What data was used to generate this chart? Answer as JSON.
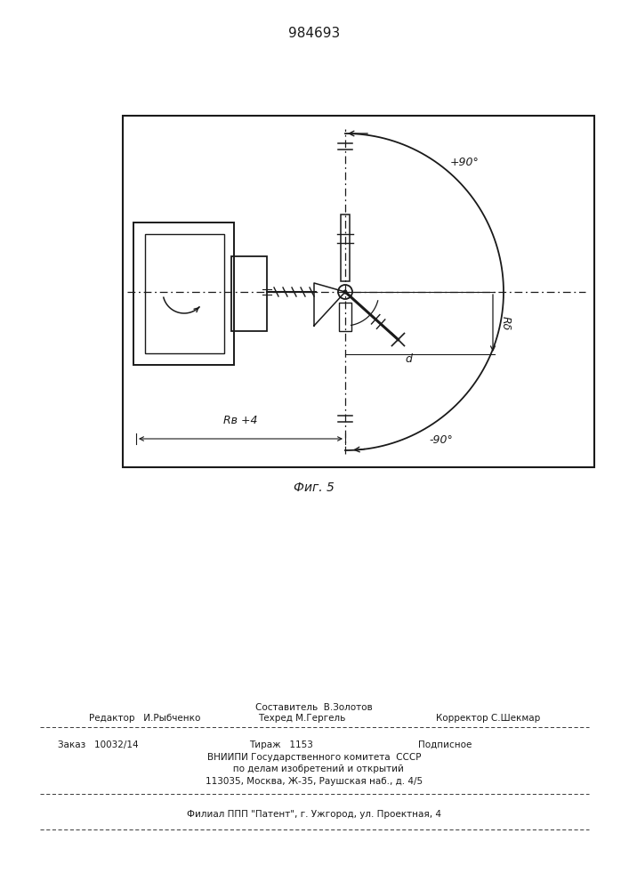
{
  "title": "984693",
  "fig_label": "Фиг. 5",
  "bg_color": "#ffffff",
  "line_color": "#1a1a1a",
  "page_width": 7.07,
  "page_height": 10.0,
  "label_90p": "+90°",
  "label_90n": "-90°",
  "label_Rb": "Rδ",
  "label_d": "d",
  "label_Rv4": "Rв +4",
  "footer_compose": "Составитель  В.Золотов",
  "footer_editor": "Редактор   И.Рыбченко",
  "footer_techred": "Техред М.Гергель",
  "footer_correct": "Корректор С.Шекмар",
  "footer_zakaz": "Заказ   10032/14",
  "footer_tirazh": "Тираж   1153",
  "footer_podp": "Подписное",
  "footer_vniip1": "ВНИИПИ Государственного комитета  СССР",
  "footer_vniip2": "   по делам изобретений и открытий",
  "footer_vniip3": "113035, Москва, Ж-35, Раушская наб., д. 4/5",
  "footer_filial": "Филиал ППП \"Патент\", г. Ужгород, ул. Проектная, 4"
}
